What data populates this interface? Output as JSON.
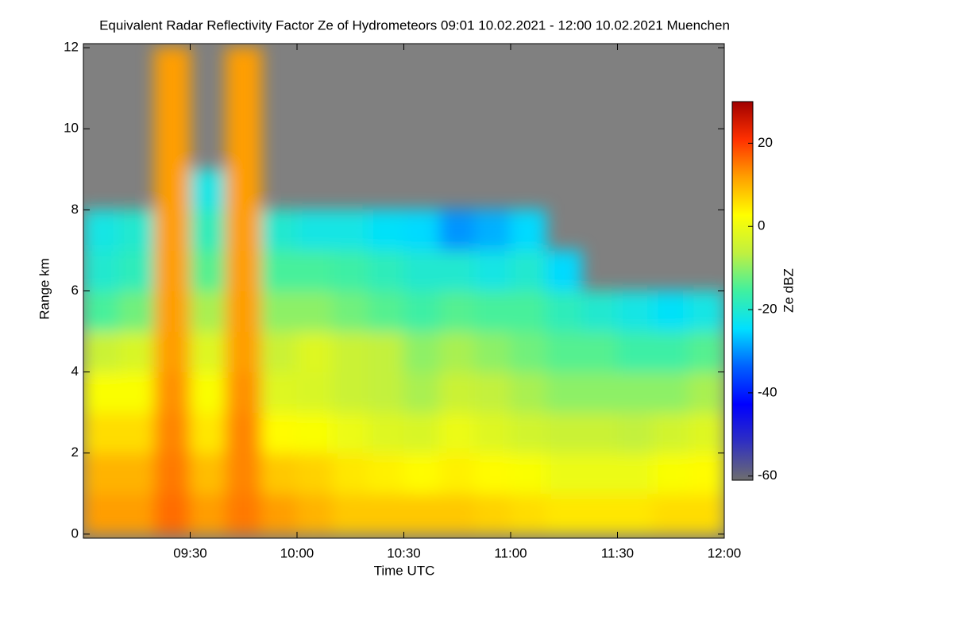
{
  "chart_data": {
    "type": "heatmap",
    "title": "Equivalent Radar Reflectivity Factor Ze of Hydrometeors   09:01 10.02.2021 - 12:00 10.02.2021 Muenchen",
    "x_label": "Time UTC",
    "y_label": "Range km",
    "colorbar_label": "Ze dBZ",
    "xlim": [
      "09:00",
      "12:00"
    ],
    "xticks": [
      "09:30",
      "10:00",
      "10:30",
      "11:00",
      "11:30",
      "12:00"
    ],
    "ylim": [
      -0.1,
      12.1
    ],
    "yticks": [
      0,
      2,
      4,
      6,
      8,
      10,
      12
    ],
    "clim": [
      -61,
      30
    ],
    "cticks": [
      -60,
      -40,
      -20,
      0,
      20
    ],
    "colormap": [
      "#6e6e6e",
      "#3030c0",
      "#0000ff",
      "#0060ff",
      "#00e0ff",
      "#40f0a0",
      "#c0f040",
      "#ffff00",
      "#ffa000",
      "#ff3000",
      "#a00000"
    ],
    "missing_color": "#808080",
    "x_bins": [
      "09:00",
      "09:10",
      "09:20",
      "09:30",
      "09:40",
      "09:50",
      "10:00",
      "10:10",
      "10:20",
      "10:30",
      "10:40",
      "10:50",
      "11:00",
      "11:10",
      "11:20",
      "11:30",
      "11:40",
      "11:50",
      "12:00"
    ],
    "y_bins": [
      0,
      1,
      2,
      3,
      4,
      5,
      6,
      7,
      8,
      9,
      10,
      11,
      12
    ],
    "z": [
      [
        12,
        10,
        6,
        2,
        -5,
        -15,
        -20,
        -22,
        null,
        null,
        null,
        null
      ],
      [
        12,
        10,
        6,
        2,
        -3,
        -12,
        -18,
        -20,
        null,
        null,
        null,
        null
      ],
      [
        16,
        15,
        14,
        13,
        12,
        12,
        12,
        12,
        12,
        12,
        12,
        12
      ],
      [
        12,
        9,
        5,
        2,
        -2,
        -8,
        -14,
        -18,
        -22,
        null,
        null,
        null
      ],
      [
        15,
        14,
        14,
        13,
        12,
        12,
        12,
        12,
        12,
        12,
        12,
        12
      ],
      [
        12,
        8,
        3,
        -2,
        -5,
        -10,
        -15,
        -20,
        null,
        null,
        null,
        null
      ],
      [
        10,
        7,
        2,
        -3,
        -2,
        -10,
        -15,
        -22,
        null,
        null,
        null,
        null
      ],
      [
        8,
        5,
        0,
        -5,
        -5,
        -12,
        -16,
        -22,
        null,
        null,
        null,
        null
      ],
      [
        8,
        4,
        -2,
        -6,
        -6,
        -14,
        -18,
        -24,
        null,
        null,
        null,
        null
      ],
      [
        8,
        3,
        -3,
        -8,
        -10,
        -16,
        -20,
        -25,
        null,
        null,
        null,
        null
      ],
      [
        8,
        4,
        0,
        -5,
        -8,
        -14,
        -20,
        -30,
        null,
        null,
        null,
        null
      ],
      [
        7,
        3,
        -2,
        -6,
        -10,
        -15,
        -22,
        -28,
        null,
        null,
        null,
        null
      ],
      [
        6,
        2,
        -4,
        -8,
        -12,
        -15,
        -20,
        -25,
        null,
        null,
        null,
        null
      ],
      [
        5,
        0,
        -5,
        -10,
        -14,
        -18,
        -25,
        null,
        null,
        null,
        null,
        null
      ],
      [
        5,
        0,
        -5,
        -10,
        -14,
        -20,
        null,
        null,
        null,
        null,
        null,
        null
      ],
      [
        5,
        0,
        -6,
        -10,
        -16,
        -22,
        null,
        null,
        null,
        null,
        null,
        null
      ],
      [
        6,
        2,
        -4,
        -10,
        -16,
        -24,
        null,
        null,
        null,
        null,
        null,
        null
      ],
      [
        6,
        3,
        -2,
        -8,
        -14,
        -22,
        null,
        null,
        null,
        null,
        null,
        null
      ]
    ]
  }
}
